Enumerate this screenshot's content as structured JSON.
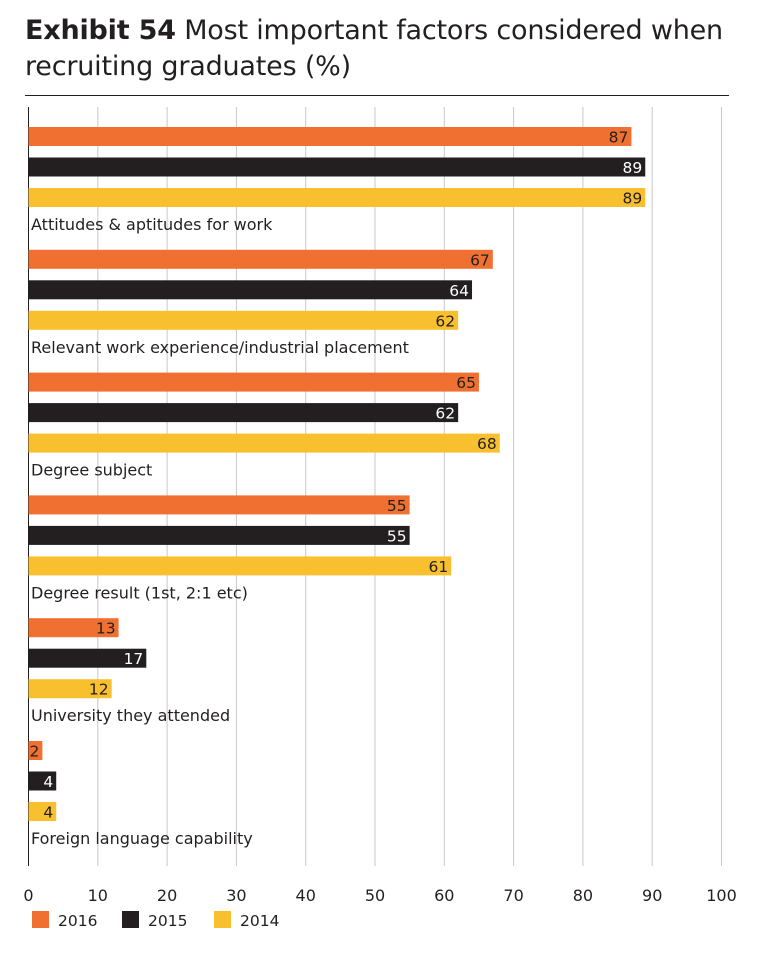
{
  "header": {
    "exhibit": "Exhibit 54",
    "title": "Most important factors considered when recruiting graduates (%)"
  },
  "chart_data": {
    "type": "bar",
    "orientation": "horizontal",
    "title": "Exhibit 54 Most important factors considered when recruiting graduates (%)",
    "categories": [
      "Attitudes & aptitudes for work",
      "Relevant work experience/industrial placement",
      "Degree subject",
      "Degree result (1st, 2:1 etc)",
      "University they attended",
      "Foreign language capability"
    ],
    "series": [
      {
        "name": "2016",
        "color": "#f07032",
        "label_color": "#231f20",
        "values": [
          87,
          67,
          65,
          55,
          13,
          2
        ]
      },
      {
        "name": "2015",
        "color": "#231f20",
        "label_color": "#ffffff",
        "values": [
          89,
          64,
          62,
          55,
          17,
          4
        ]
      },
      {
        "name": "2014",
        "color": "#f8c02f",
        "label_color": "#231f20",
        "values": [
          89,
          62,
          68,
          61,
          12,
          4
        ]
      }
    ],
    "xlim": [
      0,
      100
    ],
    "xticks": [
      "0",
      "10",
      "20",
      "30",
      "40",
      "50",
      "60",
      "70",
      "80",
      "90",
      "100"
    ],
    "grid": true,
    "legend_position": "bottom-left",
    "xlabel": "",
    "ylabel": ""
  }
}
